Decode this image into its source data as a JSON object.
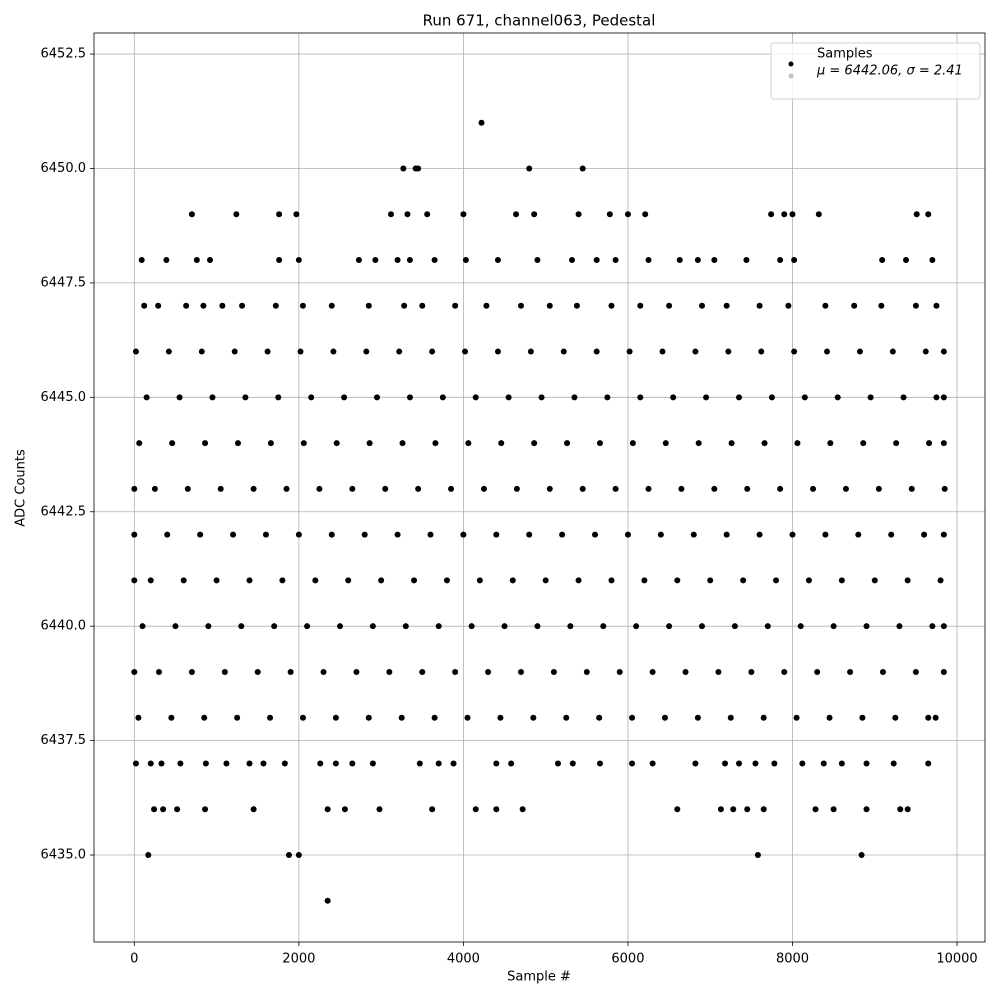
{
  "chart_data": {
    "type": "scatter",
    "title": "Run 671, channel063, Pedestal",
    "x_label": "Sample #",
    "y_label": "ADC Counts",
    "xlim": [
      -490,
      10340
    ],
    "xticks": [
      0,
      2000,
      4000,
      6000,
      8000,
      10000
    ],
    "ylim": [
      6433.1,
      6452.96
    ],
    "yticks": [
      {
        "value": 6435,
        "label": "6435.0"
      },
      6437.5,
      {
        "value": 6440,
        "label": "6440.0"
      },
      6442.5,
      {
        "value": 6445,
        "label": "6445.0"
      },
      6447.5,
      {
        "value": 6450,
        "label": "6450.0"
      },
      6452.5
    ],
    "grid": true,
    "legend": "upper right",
    "series": [
      {
        "name": "Samples",
        "color": "#000000",
        "x": [
          4220,
          3270,
          3420,
          3450,
          4800,
          5450,
          700,
          1240,
          1760,
          1970,
          3120,
          3320,
          3560,
          4000,
          4640,
          4860,
          5400,
          5780,
          6000,
          6210,
          7740,
          7900,
          8000,
          8320,
          9510,
          9650,
          90,
          390,
          760,
          920,
          1760,
          2000,
          2730,
          2930,
          3200,
          3350,
          3650,
          4030,
          4420,
          4900,
          5320,
          5620,
          5850,
          6250,
          6630,
          6850,
          7050,
          7440,
          7850,
          8020,
          9090,
          9380,
          9700,
          120,
          290,
          630,
          840,
          1070,
          1310,
          1720,
          2050,
          2400,
          2850,
          3280,
          3500,
          3900,
          4280,
          4700,
          5050,
          5380,
          5800,
          6150,
          6500,
          6900,
          7200,
          7600,
          7950,
          8400,
          8750,
          9080,
          9500,
          9750,
          20,
          420,
          820,
          1220,
          1620,
          2020,
          2420,
          2820,
          3220,
          3620,
          4020,
          4420,
          4820,
          5220,
          5620,
          6020,
          6420,
          6820,
          7220,
          7620,
          8020,
          8420,
          8820,
          9220,
          9620,
          9840,
          150,
          550,
          950,
          1350,
          1750,
          2150,
          2550,
          2950,
          3350,
          3750,
          4150,
          4550,
          4950,
          5350,
          5750,
          6150,
          6550,
          6950,
          7350,
          7750,
          8150,
          8550,
          8950,
          9350,
          9750,
          9840,
          60,
          460,
          860,
          1260,
          1660,
          2060,
          2460,
          2860,
          3260,
          3660,
          4060,
          4460,
          4860,
          5260,
          5660,
          6060,
          6460,
          6860,
          7260,
          7660,
          8060,
          8460,
          8860,
          9260,
          9660,
          9840,
          0,
          250,
          650,
          1050,
          1450,
          1850,
          2250,
          2650,
          3050,
          3450,
          3850,
          4250,
          4650,
          5050,
          5450,
          5850,
          6250,
          6650,
          7050,
          7450,
          7850,
          8250,
          8650,
          9050,
          9450,
          9850,
          0,
          400,
          800,
          1200,
          1600,
          2000,
          2400,
          2800,
          3200,
          3600,
          4000,
          4400,
          4800,
          5200,
          5600,
          6000,
          6400,
          6800,
          7200,
          7600,
          8000,
          8400,
          8800,
          9200,
          9600,
          9840,
          0,
          200,
          600,
          1000,
          1400,
          1800,
          2200,
          2600,
          3000,
          3400,
          3800,
          4200,
          4600,
          5000,
          5400,
          5800,
          6200,
          6600,
          7000,
          7400,
          7800,
          8200,
          8600,
          9000,
          9400,
          9800,
          100,
          500,
          900,
          1300,
          1700,
          2100,
          2500,
          2900,
          3300,
          3700,
          4100,
          4500,
          4900,
          5300,
          5700,
          6100,
          6500,
          6900,
          7300,
          7700,
          8100,
          8500,
          8900,
          9300,
          9700,
          9840,
          0,
          300,
          700,
          1100,
          1500,
          1900,
          2300,
          2700,
          3100,
          3500,
          3900,
          4300,
          4700,
          5100,
          5500,
          5900,
          6300,
          6700,
          7100,
          7500,
          7900,
          8300,
          8700,
          9100,
          9500,
          9840,
          50,
          450,
          850,
          1250,
          1650,
          2050,
          2450,
          2850,
          3250,
          3650,
          4050,
          4450,
          4850,
          5250,
          5650,
          6050,
          6450,
          6850,
          7250,
          7650,
          8050,
          8450,
          8850,
          9250,
          9650,
          9740,
          20,
          200,
          330,
          560,
          870,
          1120,
          1400,
          1570,
          1830,
          2260,
          2450,
          2650,
          2900,
          3470,
          3700,
          3880,
          4400,
          4580,
          5150,
          5330,
          5660,
          6050,
          6300,
          6820,
          7180,
          7350,
          7550,
          7780,
          8120,
          8380,
          8600,
          8900,
          9230,
          9650,
          240,
          350,
          520,
          860,
          1450,
          2350,
          2560,
          2980,
          3620,
          4150,
          4400,
          4720,
          6600,
          7130,
          7280,
          7450,
          7650,
          8280,
          8500,
          8900,
          9310,
          9400,
          170,
          1880,
          2000,
          7580,
          8840,
          2350
        ],
        "values": [
          6451,
          6450,
          6450,
          6450,
          6450,
          6450,
          6449,
          6449,
          6449,
          6449,
          6449,
          6449,
          6449,
          6449,
          6449,
          6449,
          6449,
          6449,
          6449,
          6449,
          6449,
          6449,
          6449,
          6449,
          6449,
          6449,
          6448,
          6448,
          6448,
          6448,
          6448,
          6448,
          6448,
          6448,
          6448,
          6448,
          6448,
          6448,
          6448,
          6448,
          6448,
          6448,
          6448,
          6448,
          6448,
          6448,
          6448,
          6448,
          6448,
          6448,
          6448,
          6448,
          6448,
          6447,
          6447,
          6447,
          6447,
          6447,
          6447,
          6447,
          6447,
          6447,
          6447,
          6447,
          6447,
          6447,
          6447,
          6447,
          6447,
          6447,
          6447,
          6447,
          6447,
          6447,
          6447,
          6447,
          6447,
          6447,
          6447,
          6447,
          6447,
          6447,
          6446,
          6446,
          6446,
          6446,
          6446,
          6446,
          6446,
          6446,
          6446,
          6446,
          6446,
          6446,
          6446,
          6446,
          6446,
          6446,
          6446,
          6446,
          6446,
          6446,
          6446,
          6446,
          6446,
          6446,
          6446,
          6446,
          6445,
          6445,
          6445,
          6445,
          6445,
          6445,
          6445,
          6445,
          6445,
          6445,
          6445,
          6445,
          6445,
          6445,
          6445,
          6445,
          6445,
          6445,
          6445,
          6445,
          6445,
          6445,
          6445,
          6445,
          6445,
          6445,
          6444,
          6444,
          6444,
          6444,
          6444,
          6444,
          6444,
          6444,
          6444,
          6444,
          6444,
          6444,
          6444,
          6444,
          6444,
          6444,
          6444,
          6444,
          6444,
          6444,
          6444,
          6444,
          6444,
          6444,
          6444,
          6444,
          6443,
          6443,
          6443,
          6443,
          6443,
          6443,
          6443,
          6443,
          6443,
          6443,
          6443,
          6443,
          6443,
          6443,
          6443,
          6443,
          6443,
          6443,
          6443,
          6443,
          6443,
          6443,
          6443,
          6443,
          6443,
          6443,
          6442,
          6442,
          6442,
          6442,
          6442,
          6442,
          6442,
          6442,
          6442,
          6442,
          6442,
          6442,
          6442,
          6442,
          6442,
          6442,
          6442,
          6442,
          6442,
          6442,
          6442,
          6442,
          6442,
          6442,
          6442,
          6442,
          6441,
          6441,
          6441,
          6441,
          6441,
          6441,
          6441,
          6441,
          6441,
          6441,
          6441,
          6441,
          6441,
          6441,
          6441,
          6441,
          6441,
          6441,
          6441,
          6441,
          6441,
          6441,
          6441,
          6441,
          6441,
          6441,
          6440,
          6440,
          6440,
          6440,
          6440,
          6440,
          6440,
          6440,
          6440,
          6440,
          6440,
          6440,
          6440,
          6440,
          6440,
          6440,
          6440,
          6440,
          6440,
          6440,
          6440,
          6440,
          6440,
          6440,
          6440,
          6440,
          6439,
          6439,
          6439,
          6439,
          6439,
          6439,
          6439,
          6439,
          6439,
          6439,
          6439,
          6439,
          6439,
          6439,
          6439,
          6439,
          6439,
          6439,
          6439,
          6439,
          6439,
          6439,
          6439,
          6439,
          6439,
          6439,
          6438,
          6438,
          6438,
          6438,
          6438,
          6438,
          6438,
          6438,
          6438,
          6438,
          6438,
          6438,
          6438,
          6438,
          6438,
          6438,
          6438,
          6438,
          6438,
          6438,
          6438,
          6438,
          6438,
          6438,
          6438,
          6438,
          6437,
          6437,
          6437,
          6437,
          6437,
          6437,
          6437,
          6437,
          6437,
          6437,
          6437,
          6437,
          6437,
          6437,
          6437,
          6437,
          6437,
          6437,
          6437,
          6437,
          6437,
          6437,
          6437,
          6437,
          6437,
          6437,
          6437,
          6437,
          6437,
          6437,
          6437,
          6437,
          6437,
          6437,
          6436,
          6436,
          6436,
          6436,
          6436,
          6436,
          6436,
          6436,
          6436,
          6436,
          6436,
          6436,
          6436,
          6436,
          6436,
          6436,
          6436,
          6436,
          6436,
          6436,
          6436,
          6436,
          6435,
          6435,
          6435,
          6435,
          6435,
          6434
        ]
      },
      {
        "name": "μ = 6442.06, σ = 2.41",
        "color": "#c0c0c0",
        "x": [],
        "values": []
      }
    ]
  }
}
